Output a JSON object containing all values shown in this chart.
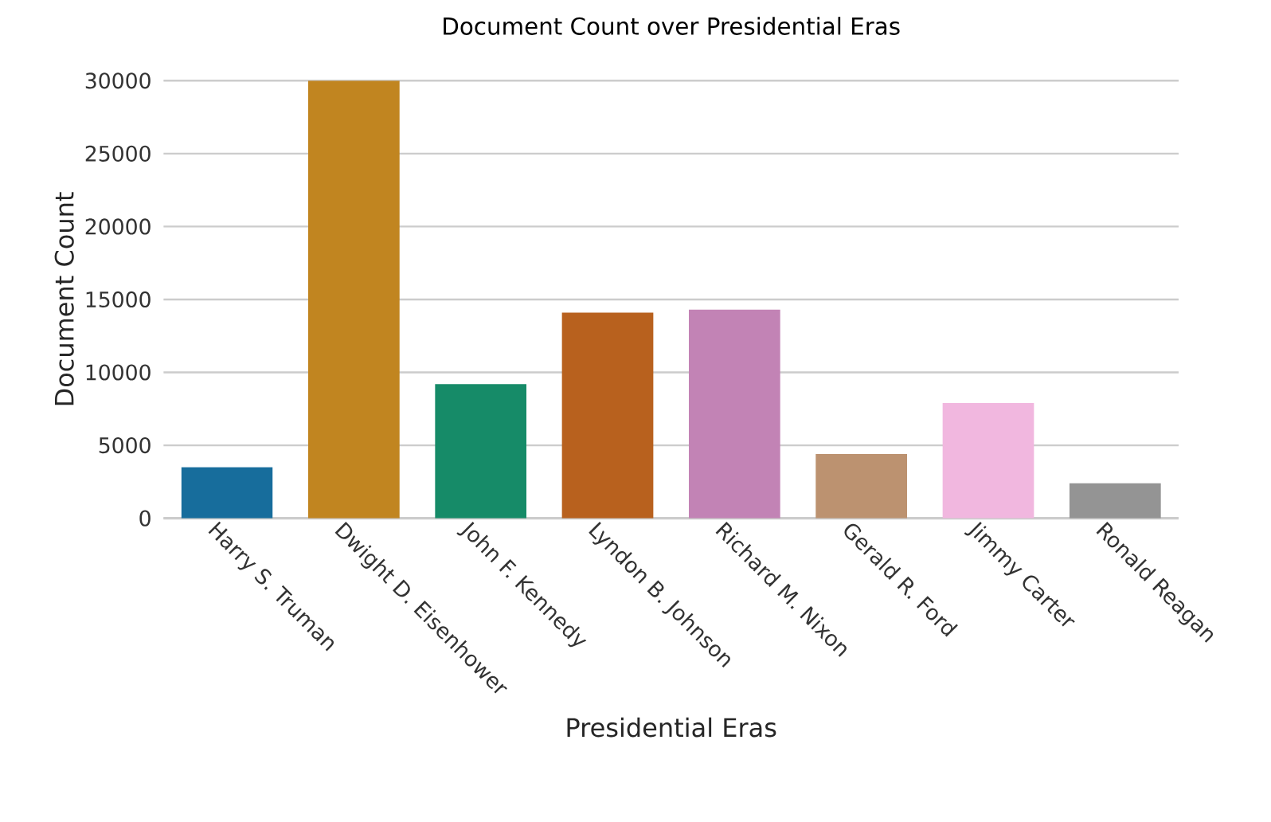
{
  "chart_data": {
    "type": "bar",
    "title": "Document Count over Presidential Eras",
    "xlabel": "Presidential Eras",
    "ylabel": "Document Count",
    "categories": [
      "Harry S. Truman",
      "Dwight D. Eisenhower",
      "John F. Kennedy",
      "Lyndon B. Johnson",
      "Richard M. Nixon",
      "Gerald R. Ford",
      "Jimmy Carter",
      "Ronald Reagan"
    ],
    "values": [
      3500,
      30000,
      9200,
      14100,
      14300,
      4400,
      7900,
      2400
    ],
    "colors": [
      "#176d9c",
      "#c18520",
      "#168b68",
      "#b8611e",
      "#c283b5",
      "#bc9270",
      "#f1b7df",
      "#949494"
    ],
    "ylim": [
      0,
      30000
    ],
    "yticks": [
      0,
      5000,
      10000,
      15000,
      20000,
      25000,
      30000
    ],
    "grid": "y"
  }
}
